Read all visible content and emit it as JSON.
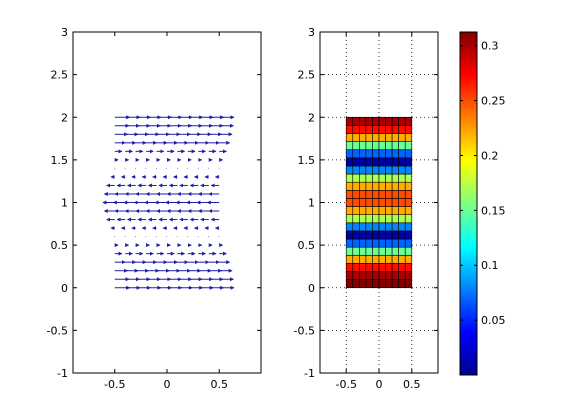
{
  "chart_data": [
    {
      "type": "quiver",
      "xlim": [
        -0.9,
        0.9
      ],
      "ylim": [
        -1,
        3
      ],
      "x_ticks": [
        -0.5,
        0,
        0.5
      ],
      "x_tick_labels": [
        "-0.5",
        "0",
        "0.5"
      ],
      "y_ticks": [
        -1,
        -0.5,
        0,
        0.5,
        1,
        1.5,
        2,
        2.5,
        3
      ],
      "y_tick_labels": [
        "-1",
        "-0.5",
        "0",
        "0.5",
        "1",
        "1.5",
        "2",
        "2.5",
        "3"
      ],
      "grid": false,
      "arrow_color": "#1f1fa8",
      "x_positions": [
        -0.5,
        -0.4,
        -0.3,
        -0.2,
        -0.1,
        0,
        0.1,
        0.2,
        0.3,
        0.4,
        0.5
      ],
      "rows": [
        {
          "y": 0.0,
          "u": 0.3125
        },
        {
          "y": 0.1,
          "u": 0.3
        },
        {
          "y": 0.2,
          "u": 0.27
        },
        {
          "y": 0.3,
          "u": 0.22
        },
        {
          "y": 0.4,
          "u": 0.15
        },
        {
          "y": 0.5,
          "u": 0.07
        },
        {
          "y": 0.6,
          "u": -0.01
        },
        {
          "y": 0.7,
          "u": -0.08
        },
        {
          "y": 0.8,
          "u": -0.17
        },
        {
          "y": 0.9,
          "u": -0.22
        },
        {
          "y": 1.0,
          "u": -0.25
        },
        {
          "y": 1.1,
          "u": -0.22
        },
        {
          "y": 1.2,
          "u": -0.17
        },
        {
          "y": 1.3,
          "u": -0.08
        },
        {
          "y": 1.4,
          "u": -0.01
        },
        {
          "y": 1.5,
          "u": 0.07
        },
        {
          "y": 1.6,
          "u": 0.15
        },
        {
          "y": 1.7,
          "u": 0.22
        },
        {
          "y": 1.8,
          "u": 0.27
        },
        {
          "y": 1.9,
          "u": 0.3
        },
        {
          "y": 2.0,
          "u": 0.3125
        }
      ]
    },
    {
      "type": "heatmap",
      "xlim": [
        -0.9,
        0.9
      ],
      "ylim": [
        -1,
        3
      ],
      "x_ticks": [
        -0.5,
        0,
        0.5
      ],
      "x_tick_labels": [
        "-0.5",
        "0",
        "0.5"
      ],
      "y_ticks": [
        -1,
        -0.5,
        0,
        0.5,
        1,
        1.5,
        2,
        2.5,
        3
      ],
      "y_tick_labels": [
        "-1",
        "-0.5",
        "0",
        "0.5",
        "1",
        "1.5",
        "2",
        "2.5",
        "3"
      ],
      "grid": true,
      "x_range": [
        -0.5,
        0.5
      ],
      "y_range": [
        0,
        2
      ],
      "n_cols": 10,
      "row_values": [
        0.3125,
        0.3,
        0.27,
        0.22,
        0.15,
        0.07,
        0.01,
        0.08,
        0.17,
        0.22,
        0.25,
        0.25,
        0.22,
        0.17,
        0.08,
        0.01,
        0.07,
        0.15,
        0.22,
        0.27,
        0.3
      ],
      "colorbar": {
        "min": 0,
        "max": 0.3125,
        "ticks": [
          0.05,
          0.1,
          0.15,
          0.2,
          0.25,
          0.3
        ],
        "tick_labels": [
          "0.05",
          "0.1",
          "0.15",
          "0.2",
          "0.25",
          "0.3"
        ],
        "colormap": "jet"
      }
    }
  ]
}
